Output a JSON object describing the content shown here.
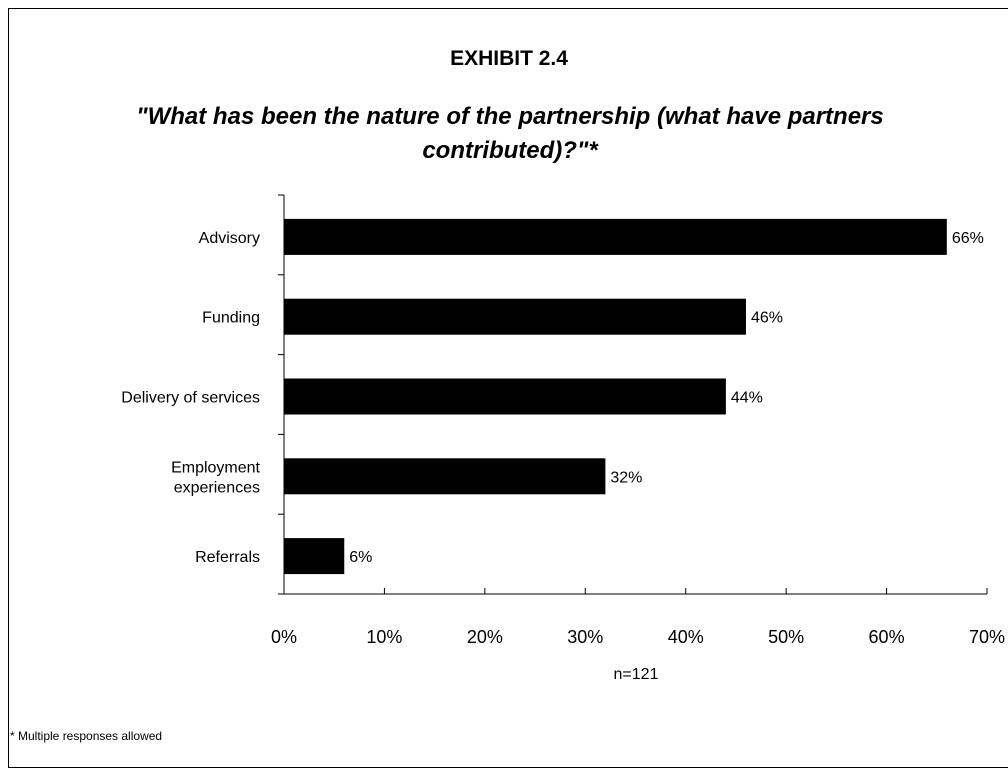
{
  "exhibit_label": "EXHIBIT 2.4",
  "question": "\"What has been the nature of the partnership (what have partners contributed)?\"*",
  "sample_size": "n=121",
  "footnote": "* Multiple responses allowed",
  "colors": {
    "bar": "#000000",
    "axis": "#000000",
    "background": "#ffffff"
  },
  "chart_data": {
    "type": "bar",
    "orientation": "horizontal",
    "categories": [
      [
        "Advisory"
      ],
      [
        "Funding"
      ],
      [
        "Delivery of  services"
      ],
      [
        "Employment",
        "experiences"
      ],
      [
        "Referrals"
      ]
    ],
    "values": [
      66,
      46,
      44,
      32,
      6
    ],
    "value_labels": [
      "66%",
      "46%",
      "44%",
      "32%",
      "6%"
    ],
    "x_ticks": [
      "0%",
      "10%",
      "20%",
      "30%",
      "40%",
      "50%",
      "60%",
      "70%"
    ],
    "xlim": [
      0,
      70
    ],
    "grid": false,
    "legend": "none"
  }
}
